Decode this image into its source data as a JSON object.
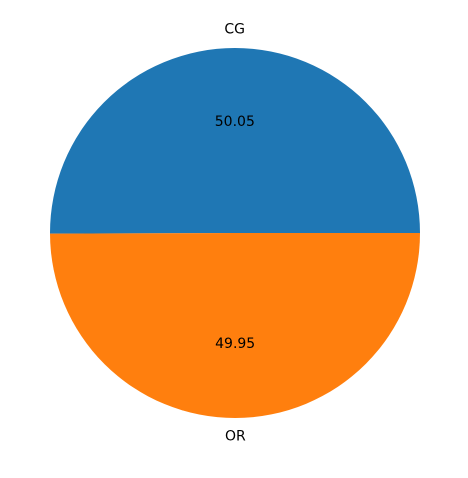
{
  "chart_data": {
    "type": "pie",
    "title": "",
    "slices": [
      {
        "label": "CG",
        "value": 50.05,
        "value_label": "50.05",
        "color": "#1f77b4"
      },
      {
        "label": "OR",
        "value": 49.95,
        "value_label": "49.95",
        "color": "#ff7f0e"
      }
    ],
    "start_angle_deg": 0,
    "direction": "counterclockwise",
    "legend": "none"
  }
}
